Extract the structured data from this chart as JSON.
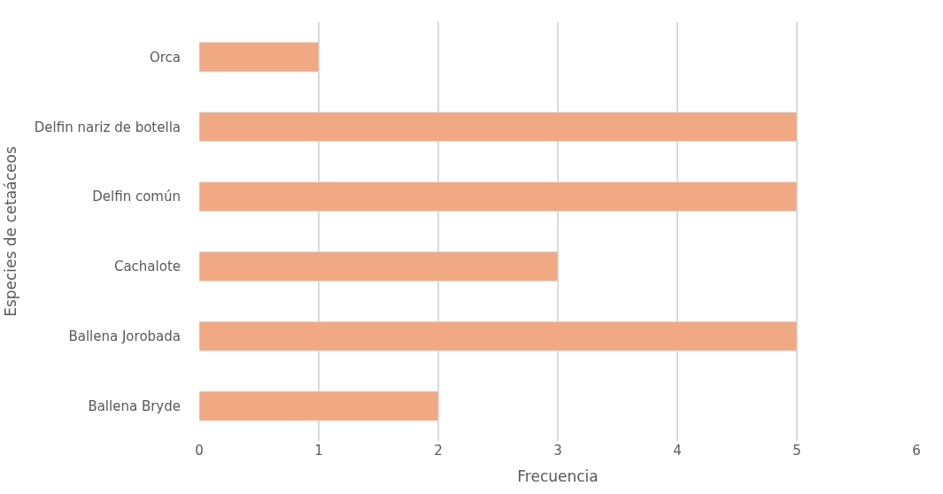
{
  "chart_data": {
    "type": "bar",
    "orientation": "horizontal",
    "xlabel": "Frecuencia",
    "ylabel": "Especies de cetaáceos",
    "categories": [
      "Orca",
      "Delfin nariz de botella",
      "Delfin común",
      "Cachalote",
      "Ballena Jorobada",
      "Ballena Bryde"
    ],
    "values": [
      1,
      5,
      5,
      3,
      5,
      2
    ],
    "color": "#f1a983",
    "xlim": [
      0,
      6
    ],
    "xticks": [
      0,
      1,
      2,
      3,
      4,
      5,
      6
    ],
    "grid": "x",
    "legend": false
  }
}
